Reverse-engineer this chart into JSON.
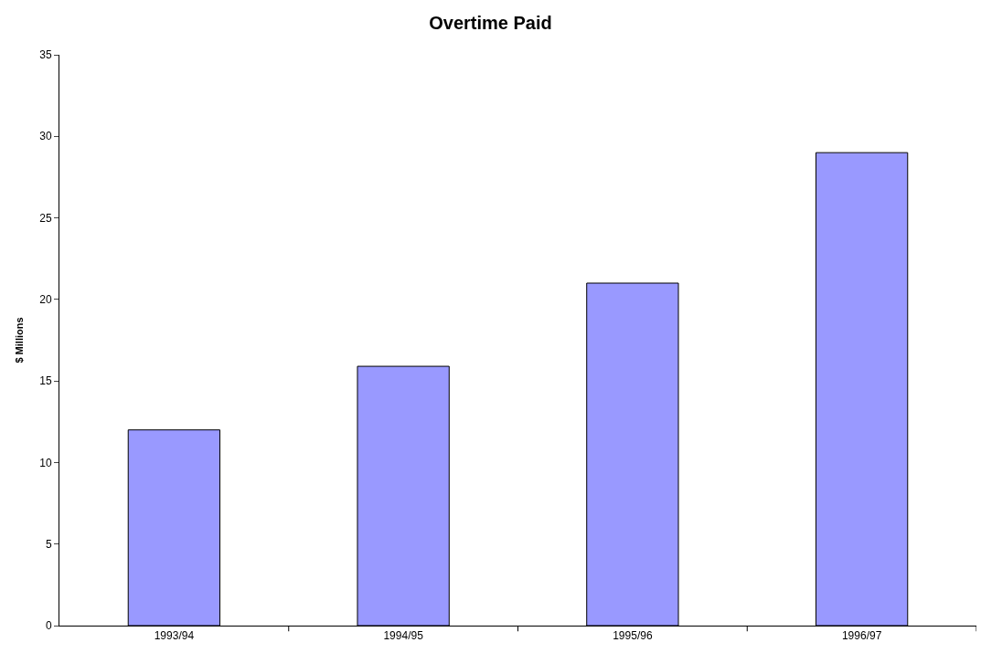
{
  "chart_data": {
    "type": "bar",
    "title": "Overtime Paid",
    "ylabel": "$ Millions",
    "categories": [
      "1993/94",
      "1994/95",
      "1995/96",
      "1996/97"
    ],
    "values": [
      12,
      15.9,
      21,
      29
    ],
    "color": "#9999ff",
    "ylim": [
      0,
      35
    ],
    "yticks": [
      0,
      5,
      10,
      15,
      20,
      25,
      30,
      35
    ]
  }
}
